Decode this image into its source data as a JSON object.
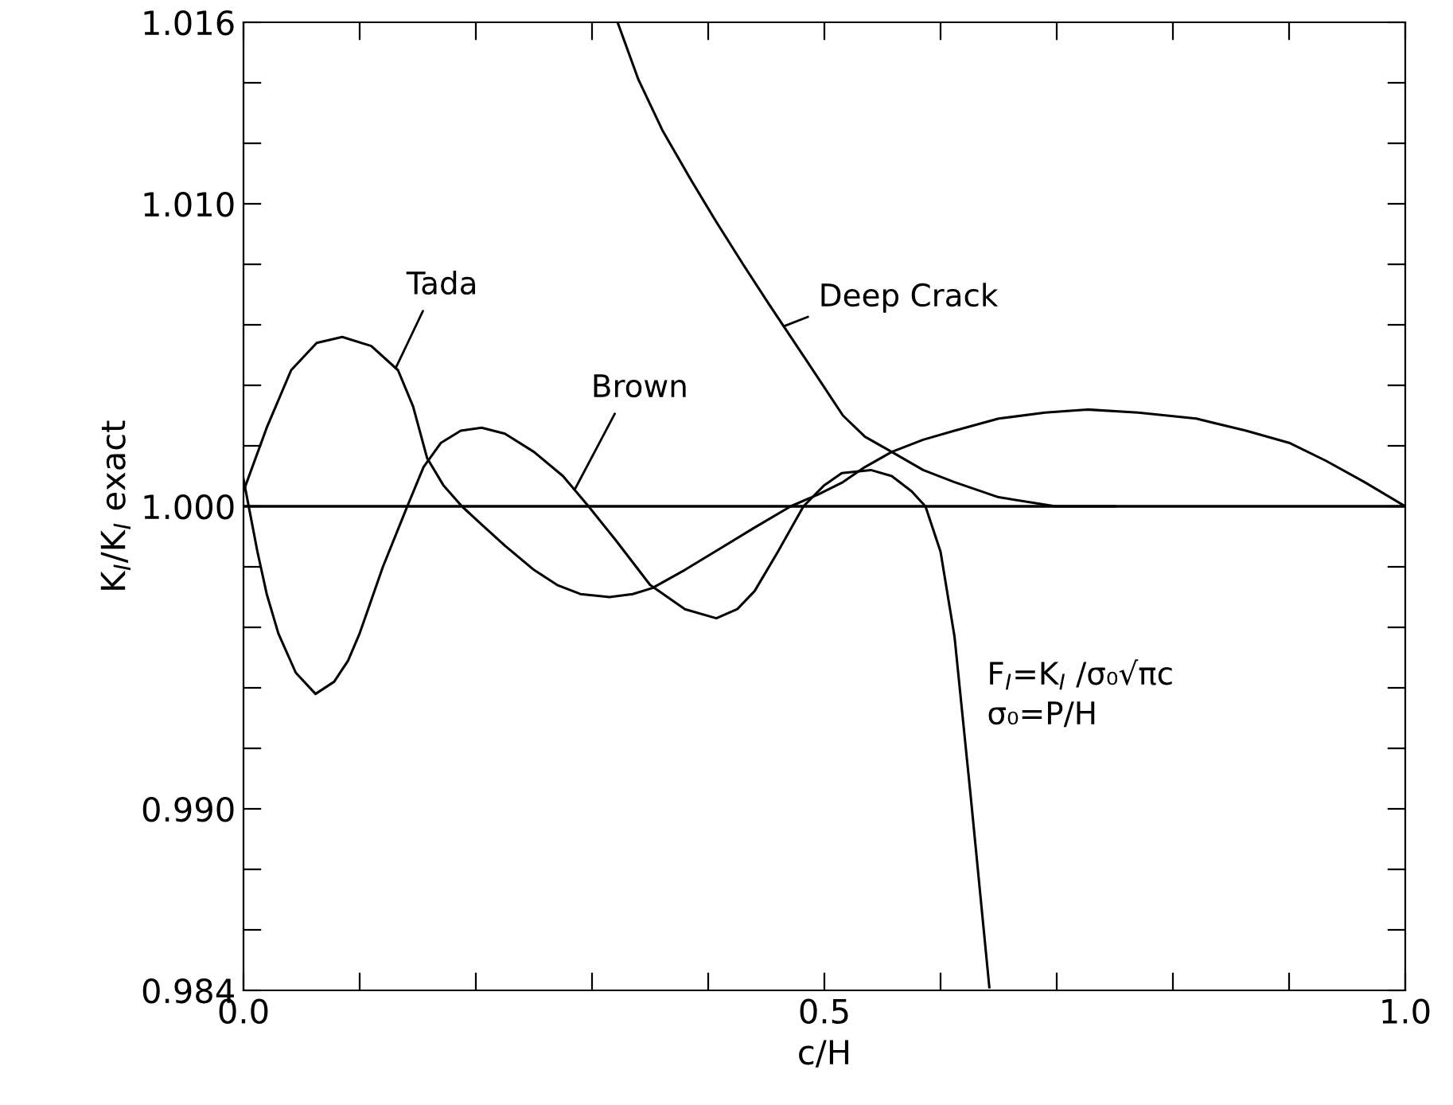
{
  "chart_data": {
    "type": "line",
    "xlabel": "c/H",
    "ylabel": "K$_{I}$/K$_{I}$ exact",
    "xlim": [
      0,
      1
    ],
    "ylim": [
      0.984,
      1.016
    ],
    "xticks": [
      {
        "value": 0,
        "label": "0.0"
      },
      {
        "value": 0.1,
        "label": null
      },
      {
        "value": 0.2,
        "label": null
      },
      {
        "value": 0.3,
        "label": null
      },
      {
        "value": 0.4,
        "label": null
      },
      0.5,
      {
        "value": 0.6,
        "label": null
      },
      {
        "value": 0.7,
        "label": null
      },
      {
        "value": 0.8,
        "label": null
      },
      {
        "value": 0.9,
        "label": null
      },
      {
        "value": 1,
        "label": "1.0"
      }
    ],
    "yticks": [
      0.984,
      {
        "value": 0.986,
        "label": null
      },
      {
        "value": 0.988,
        "label": null
      },
      {
        "value": 0.99,
        "label": "0.990"
      },
      {
        "value": 0.992,
        "label": null
      },
      {
        "value": 0.994,
        "label": null
      },
      {
        "value": 0.996,
        "label": null
      },
      {
        "value": 0.998,
        "label": null
      },
      {
        "value": 1.0,
        "label": "1.000"
      },
      {
        "value": 1.002,
        "label": null
      },
      {
        "value": 1.004,
        "label": null
      },
      {
        "value": 1.006,
        "label": null
      },
      {
        "value": 1.008,
        "label": null
      },
      {
        "value": 1.01,
        "label": "1.010"
      },
      {
        "value": 1.012,
        "label": null
      },
      {
        "value": 1.014,
        "label": null
      },
      1.016
    ],
    "grid": false,
    "legend": false,
    "marker": "none",
    "line_style": "solid",
    "series": [
      {
        "name": "Tada",
        "color": "#000000",
        "x": [
          0,
          0.02,
          0.041,
          0.063,
          0.085,
          0.11,
          0.133,
          0.146,
          0.158,
          0.172,
          0.188,
          0.205,
          0.225,
          0.25,
          0.27,
          0.29,
          0.315,
          0.335,
          0.352,
          0.38,
          0.41,
          0.44,
          0.471,
          0.495,
          0.516,
          0.535,
          0.558,
          0.585,
          0.612,
          0.65,
          0.69,
          0.726,
          0.77,
          0.82,
          0.863,
          0.9,
          0.932,
          0.965,
          1.0
        ],
        "values": [
          1.0005,
          1.0026,
          1.0045,
          1.0054,
          1.0056,
          1.0053,
          1.0045,
          1.0033,
          1.0016,
          1.0007,
          1.0,
          0.9994,
          0.9987,
          0.9979,
          0.9974,
          0.9971,
          0.997,
          0.9971,
          0.9973,
          0.9979,
          0.9986,
          0.9993,
          1.0,
          1.0004,
          1.0008,
          1.0013,
          1.0018,
          1.0022,
          1.0025,
          1.0029,
          1.0031,
          1.0032,
          1.0031,
          1.0029,
          1.0025,
          1.0021,
          1.0015,
          1.0008,
          1.0
        ]
      },
      {
        "name": "Brown",
        "color": "#000000",
        "x": [
          0,
          0.006,
          0.012,
          0.02,
          0.03,
          0.045,
          0.062,
          0.078,
          0.09,
          0.1,
          0.12,
          0.141,
          0.155,
          0.17,
          0.187,
          0.205,
          0.225,
          0.25,
          0.275,
          0.297,
          0.32,
          0.35,
          0.38,
          0.407,
          0.425,
          0.44,
          0.46,
          0.482,
          0.5,
          0.515,
          0.54,
          0.558,
          0.575,
          0.587,
          0.6,
          0.612,
          0.626,
          0.642
        ],
        "values": [
          1.0009,
          0.9997,
          0.9985,
          0.9971,
          0.9958,
          0.9945,
          0.9938,
          0.9942,
          0.9949,
          0.9958,
          0.998,
          1.0,
          1.0013,
          1.0021,
          1.0025,
          1.0026,
          1.0024,
          1.0018,
          1.001,
          1.0,
          0.9989,
          0.9974,
          0.9966,
          0.9963,
          0.9966,
          0.9972,
          0.9985,
          1.0,
          1.0007,
          1.0011,
          1.0012,
          1.001,
          1.0005,
          1.0,
          0.9985,
          0.9957,
          0.9904,
          0.9841
        ]
      },
      {
        "name": "Deep Crack",
        "color": "#000000",
        "x": [
          0.322,
          0.34,
          0.361,
          0.385,
          0.407,
          0.43,
          0.452,
          0.485,
          0.516,
          0.535,
          0.558,
          0.585,
          0.612,
          0.65,
          0.699,
          0.75
        ],
        "values": [
          1.016,
          1.0141,
          1.0124,
          1.0108,
          1.0094,
          1.008,
          1.0067,
          1.0048,
          1.003,
          1.0023,
          1.0018,
          1.0012,
          1.0008,
          1.0003,
          1.0,
          1.0
        ]
      }
    ],
    "ref_lines": [
      {
        "axis": "y",
        "value": 1.0,
        "label": null,
        "color": "#000000"
      }
    ],
    "annotations": [
      "F$_{I}$=K$_{I}$ /σ₀√πc\nσ₀=P/H"
    ]
  }
}
